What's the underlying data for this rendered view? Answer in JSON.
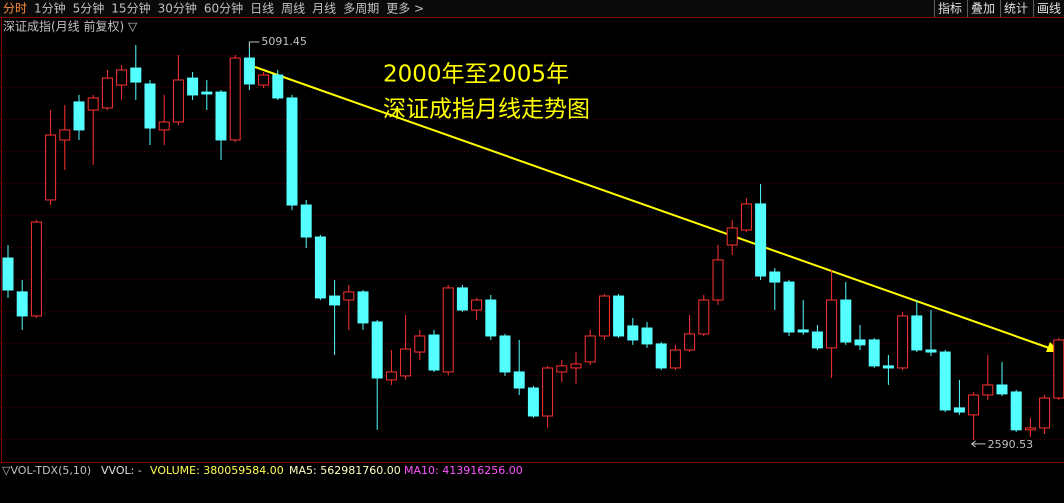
{
  "toolbar": {
    "periods": [
      "分时",
      "1分钟",
      "5分钟",
      "15分钟",
      "30分钟",
      "60分钟",
      "日线",
      "周线",
      "月线",
      "多周期",
      "更多 >"
    ],
    "tools": [
      "指标",
      "叠加",
      "统计",
      "画线"
    ]
  },
  "chart_data": {
    "type": "candlestick",
    "title": "深证成指(月线 前复权) ▽",
    "annotation": [
      "2000年至2005年",
      "深证成指月线走势图"
    ],
    "open": [
      3734,
      3521,
      3370,
      4099,
      4476,
      4715,
      4664,
      4677,
      4821,
      4928,
      4828,
      4539,
      4589,
      4865,
      4777,
      4777,
      4476,
      4991,
      4821,
      4884,
      4740,
      4067,
      3866,
      3495,
      3470,
      3521,
      3332,
      2968,
      2993,
      3143,
      3250,
      3018,
      3546,
      3407,
      3470,
      3244,
      3018,
      2917,
      2741,
      3018,
      3043,
      3081,
      3244,
      3495,
      3307,
      3294,
      3194,
      3043,
      3156,
      3257,
      3470,
      3816,
      3910,
      4074,
      3646,
      3583,
      3282,
      3269,
      3169,
      3470,
      3219,
      3219,
      3056,
      3043,
      3370,
      3156,
      3143,
      2792,
      2748,
      2873,
      2936,
      2892,
      2654,
      2666,
      2854
    ],
    "high": [
      3816,
      3596,
      3973,
      4664,
      4696,
      4759,
      4759,
      4916,
      4947,
      5073,
      4853,
      4759,
      5010,
      4903,
      4853,
      4790,
      5010,
      5091.45,
      4903,
      4916,
      4759,
      4099,
      3879,
      3596,
      3565,
      3533,
      3345,
      3156,
      3376,
      3282,
      3282,
      3565,
      3565,
      3483,
      3502,
      3257,
      3219,
      2930,
      3056,
      3093,
      3143,
      3282,
      3508,
      3508,
      3357,
      3332,
      3206,
      3188,
      3376,
      3502,
      3816,
      3973,
      4111,
      4199,
      3671,
      3596,
      3470,
      3313,
      3659,
      3583,
      3313,
      3231,
      3125,
      3395,
      3470,
      3407,
      3156,
      2968,
      2892,
      3125,
      3081,
      2905,
      2729,
      2873,
      3231
    ],
    "low": [
      3483,
      3282,
      3357,
      4067,
      4287,
      4476,
      4319,
      4664,
      4727,
      4727,
      4444,
      4444,
      4570,
      4727,
      4664,
      4350,
      4463,
      4790,
      4803,
      4727,
      4036,
      3797,
      3470,
      3125,
      3282,
      3282,
      2654,
      2936,
      2968,
      3093,
      3018,
      2999,
      3395,
      3345,
      3219,
      2993,
      2873,
      2729,
      2666,
      2955,
      2942,
      3062,
      3219,
      3231,
      3188,
      3169,
      3030,
      3030,
      3143,
      3244,
      3439,
      3753,
      3898,
      3596,
      3407,
      3244,
      3250,
      3156,
      2980,
      3188,
      3156,
      3043,
      2936,
      3030,
      3143,
      3118,
      2766,
      2748,
      2590.53,
      2842,
      2867,
      2641,
      2610,
      2628,
      2842
    ],
    "close": [
      3533,
      3370,
      3960,
      4507,
      4539,
      4539,
      4740,
      4865,
      4916,
      4840,
      4551,
      4589,
      4853,
      4759,
      4765,
      4476,
      4991,
      4828,
      4884,
      4740,
      4067,
      3866,
      3483,
      3439,
      3521,
      3326,
      2980,
      3018,
      3162,
      3244,
      3030,
      3546,
      3407,
      3470,
      3244,
      3018,
      2917,
      2741,
      3043,
      3056,
      3068,
      3244,
      3495,
      3244,
      3219,
      3194,
      3043,
      3156,
      3257,
      3470,
      3722,
      3923,
      4074,
      3621,
      3583,
      3269,
      3269,
      3169,
      3470,
      3206,
      3188,
      3056,
      3043,
      3370,
      3156,
      3143,
      2779,
      2766,
      2873,
      2936,
      2880,
      2654,
      2666,
      2854,
      3219
    ],
    "up_color": "#ff3232",
    "down_color": "#54ffff",
    "ylim": [
      2477,
      5230
    ],
    "max_label": "5091.45",
    "min_label": "2590.53"
  },
  "indicator_bar": {
    "name": "▽VOL-TDX(5,10)",
    "items": [
      "VVOL: -",
      "VOLUME: 380059584.00",
      "MA5: 562981760.00",
      "MA10: 413916256.00"
    ]
  }
}
